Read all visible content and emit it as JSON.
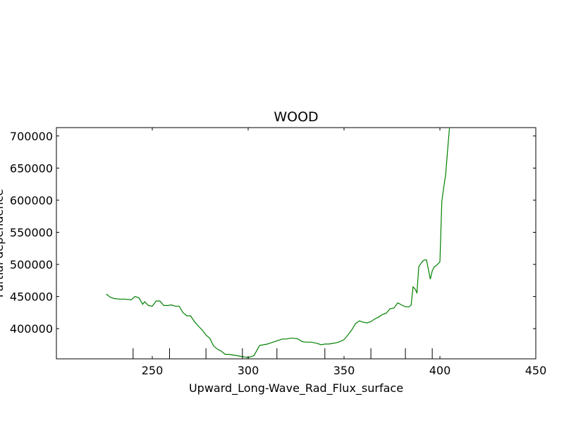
{
  "chart_data": {
    "type": "line",
    "title": "WOOD",
    "xlabel": "Upward_Long-Wave_Rad_Flux_surface",
    "ylabel": "Partial dependence",
    "xlim": [
      200,
      450
    ],
    "ylim": [
      353000,
      713000
    ],
    "xticks": [
      250,
      300,
      350,
      400,
      450
    ],
    "yticks": [
      400000,
      450000,
      500000,
      550000,
      600000,
      650000,
      700000
    ],
    "xtick_labels": [
      "250",
      "300",
      "350",
      "400",
      "450"
    ],
    "ytick_labels": [
      "400000",
      "450000",
      "500000",
      "550000",
      "600000",
      "650000",
      "700000"
    ],
    "rug": [
      240,
      259,
      278,
      297,
      315,
      340,
      364,
      382,
      396
    ],
    "grid": false,
    "series": [
      {
        "color": "#008000",
        "x": [
          226,
          228,
          230,
          233,
          236,
          239,
          241,
          243,
          245,
          246,
          248,
          250,
          252,
          254,
          256,
          258,
          260,
          262,
          264,
          266,
          268,
          270,
          272,
          274,
          276,
          278,
          280,
          282,
          284,
          286,
          288,
          290,
          292,
          294,
          296,
          298,
          300,
          302,
          303,
          306,
          308,
          310,
          312,
          314,
          316,
          318,
          320,
          322,
          324,
          326,
          328,
          330,
          333,
          336,
          338,
          340,
          342,
          344,
          346,
          348,
          350,
          352,
          354,
          356,
          358,
          360,
          362,
          364,
          366,
          368,
          370,
          372,
          374,
          376,
          378,
          380,
          382,
          384,
          385,
          386,
          387,
          388,
          389,
          391,
          392,
          393,
          395,
          396,
          397,
          398,
          400,
          401,
          402,
          403,
          404,
          405
        ],
        "y": [
          454000,
          449000,
          447000,
          446000,
          446000,
          445000,
          450000,
          448000,
          438000,
          442000,
          436000,
          435000,
          443000,
          443000,
          436000,
          436000,
          437000,
          435000,
          435000,
          425000,
          420000,
          420000,
          411000,
          404000,
          398000,
          390000,
          385000,
          373000,
          368000,
          365000,
          360000,
          360000,
          359000,
          358000,
          357000,
          356000,
          355000,
          357000,
          358000,
          374000,
          375000,
          376000,
          378000,
          380000,
          382000,
          384000,
          384000,
          385000,
          385000,
          384000,
          380000,
          379000,
          379000,
          377000,
          375000,
          376000,
          376000,
          377000,
          378000,
          380000,
          383000,
          390000,
          398000,
          408000,
          412000,
          410000,
          409000,
          411000,
          415000,
          418000,
          422000,
          424000,
          431000,
          432000,
          440000,
          437000,
          434000,
          434000,
          437000,
          465000,
          462000,
          456000,
          497000,
          505000,
          507000,
          507000,
          477000,
          490000,
          496000,
          498000,
          504000,
          598000,
          620000,
          640000,
          678000,
          713000
        ]
      }
    ]
  }
}
